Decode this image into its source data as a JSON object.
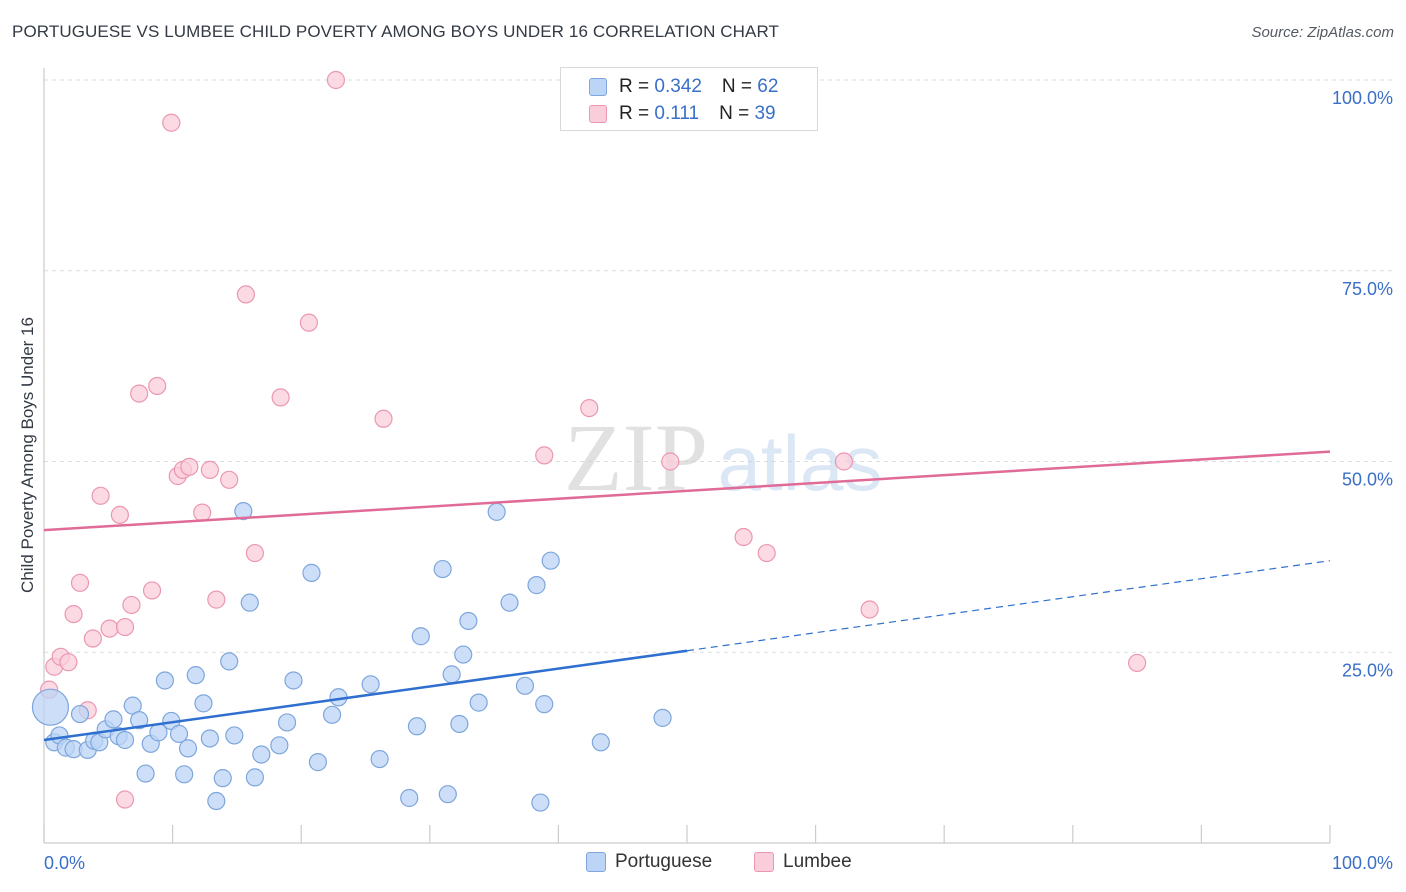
{
  "title": "PORTUGUESE VS LUMBEE CHILD POVERTY AMONG BOYS UNDER 16 CORRELATION CHART",
  "source": "Source: ZipAtlas.com",
  "watermark": {
    "zip": "ZIP",
    "atlas": "atlas"
  },
  "legend": [
    {
      "r_label": "R = ",
      "r_value": "0.342",
      "n_label": "N = ",
      "n_value": "62",
      "color": "#a9c8f0"
    },
    {
      "r_label": "R = ",
      "r_value": " 0.111",
      "n_label": "N = ",
      "n_value": "39",
      "color": "#f5b6c8"
    }
  ],
  "colors": {
    "portuguese_fill": "#bcd4f5",
    "portuguese_stroke": "#7ea6dc",
    "portuguese_line": "#2f6fcf",
    "lumbee_fill": "#f9cdd9",
    "lumbee_stroke": "#ec97b1",
    "lumbee_line": "#e06b97",
    "tick_label": "#3a6fc8",
    "grid": "#dddddd"
  },
  "chart_data": {
    "type": "scatter",
    "title": "PORTUGUESE VS LUMBEE CHILD POVERTY AMONG BOYS UNDER 16 CORRELATION CHART",
    "xlabel": "",
    "ylabel": "Child Poverty Among Boys Under 16",
    "xlim": [
      0,
      100
    ],
    "ylim": [
      0,
      100
    ],
    "x_tick_labels": [
      "0.0%",
      "100.0%"
    ],
    "y_ticks": [
      25,
      50,
      75,
      100
    ],
    "y_tick_labels": [
      "25.0%",
      "50.0%",
      "75.0%",
      "100.0%"
    ],
    "grid": true,
    "legend_position": "top-center",
    "series": [
      {
        "name": "Portuguese",
        "r": 0.342,
        "n": 62,
        "trend": {
          "x0": 0,
          "y0": 13.5,
          "x1": 50,
          "y1": 25.2,
          "dashed_to_x": 100,
          "dashed_to_y": 37.0
        },
        "points": [
          {
            "x": 0.5,
            "y": 17.8,
            "big": true
          },
          {
            "x": 0.8,
            "y": 13.2
          },
          {
            "x": 1.2,
            "y": 14.1
          },
          {
            "x": 1.7,
            "y": 12.5
          },
          {
            "x": 2.3,
            "y": 12.3
          },
          {
            "x": 2.8,
            "y": 16.9
          },
          {
            "x": 3.4,
            "y": 12.2
          },
          {
            "x": 3.9,
            "y": 13.4
          },
          {
            "x": 4.3,
            "y": 13.2
          },
          {
            "x": 4.8,
            "y": 14.9
          },
          {
            "x": 5.4,
            "y": 16.2
          },
          {
            "x": 5.8,
            "y": 14.0
          },
          {
            "x": 6.3,
            "y": 13.5
          },
          {
            "x": 6.9,
            "y": 18.0
          },
          {
            "x": 7.4,
            "y": 16.1
          },
          {
            "x": 7.9,
            "y": 9.1
          },
          {
            "x": 8.3,
            "y": 13.0
          },
          {
            "x": 8.9,
            "y": 14.5
          },
          {
            "x": 9.4,
            "y": 21.3
          },
          {
            "x": 9.9,
            "y": 16.0
          },
          {
            "x": 10.5,
            "y": 14.3
          },
          {
            "x": 10.9,
            "y": 9.0
          },
          {
            "x": 11.2,
            "y": 12.4
          },
          {
            "x": 11.8,
            "y": 22.0
          },
          {
            "x": 12.4,
            "y": 18.3
          },
          {
            "x": 12.9,
            "y": 13.7
          },
          {
            "x": 13.4,
            "y": 5.5
          },
          {
            "x": 13.9,
            "y": 8.5
          },
          {
            "x": 14.4,
            "y": 23.8
          },
          {
            "x": 14.8,
            "y": 14.1
          },
          {
            "x": 15.5,
            "y": 43.5
          },
          {
            "x": 16.0,
            "y": 31.5
          },
          {
            "x": 16.4,
            "y": 8.6
          },
          {
            "x": 16.9,
            "y": 11.6
          },
          {
            "x": 18.3,
            "y": 12.8
          },
          {
            "x": 18.9,
            "y": 15.8
          },
          {
            "x": 19.4,
            "y": 21.3
          },
          {
            "x": 20.8,
            "y": 35.4
          },
          {
            "x": 21.3,
            "y": 10.6
          },
          {
            "x": 22.4,
            "y": 16.8
          },
          {
            "x": 22.9,
            "y": 19.1
          },
          {
            "x": 25.4,
            "y": 20.8
          },
          {
            "x": 26.1,
            "y": 11.0
          },
          {
            "x": 28.4,
            "y": 5.9
          },
          {
            "x": 29.0,
            "y": 15.3
          },
          {
            "x": 29.3,
            "y": 27.1
          },
          {
            "x": 31.0,
            "y": 35.9
          },
          {
            "x": 31.4,
            "y": 6.4
          },
          {
            "x": 31.7,
            "y": 22.1
          },
          {
            "x": 32.3,
            "y": 15.6
          },
          {
            "x": 32.6,
            "y": 24.7
          },
          {
            "x": 33.0,
            "y": 29.1
          },
          {
            "x": 33.8,
            "y": 18.4
          },
          {
            "x": 35.2,
            "y": 43.4
          },
          {
            "x": 36.2,
            "y": 31.5
          },
          {
            "x": 37.4,
            "y": 20.6
          },
          {
            "x": 38.3,
            "y": 33.8
          },
          {
            "x": 38.6,
            "y": 5.3
          },
          {
            "x": 38.9,
            "y": 18.2
          },
          {
            "x": 39.4,
            "y": 37.0
          },
          {
            "x": 43.3,
            "y": 13.2
          },
          {
            "x": 48.1,
            "y": 16.4
          }
        ]
      },
      {
        "name": "Lumbee",
        "r": 0.111,
        "n": 39,
        "trend": {
          "x0": 0,
          "y0": 41.0,
          "x1": 100,
          "y1": 51.3
        },
        "points": [
          {
            "x": 0.4,
            "y": 20.1
          },
          {
            "x": 0.8,
            "y": 23.1
          },
          {
            "x": 1.3,
            "y": 24.4
          },
          {
            "x": 1.9,
            "y": 23.7
          },
          {
            "x": 2.3,
            "y": 30.0
          },
          {
            "x": 2.8,
            "y": 34.1
          },
          {
            "x": 3.4,
            "y": 17.4
          },
          {
            "x": 3.8,
            "y": 26.8
          },
          {
            "x": 4.4,
            "y": 45.5
          },
          {
            "x": 5.1,
            "y": 28.1
          },
          {
            "x": 5.9,
            "y": 43.0
          },
          {
            "x": 6.3,
            "y": 28.3
          },
          {
            "x": 6.3,
            "y": 5.7
          },
          {
            "x": 6.8,
            "y": 31.2
          },
          {
            "x": 7.4,
            "y": 58.9
          },
          {
            "x": 8.4,
            "y": 33.1
          },
          {
            "x": 8.8,
            "y": 59.9
          },
          {
            "x": 9.9,
            "y": 94.4
          },
          {
            "x": 10.4,
            "y": 48.1
          },
          {
            "x": 10.8,
            "y": 48.9
          },
          {
            "x": 11.3,
            "y": 49.3
          },
          {
            "x": 12.3,
            "y": 43.3
          },
          {
            "x": 12.9,
            "y": 48.9
          },
          {
            "x": 13.4,
            "y": 31.9
          },
          {
            "x": 14.4,
            "y": 47.6
          },
          {
            "x": 15.7,
            "y": 71.9
          },
          {
            "x": 16.4,
            "y": 38.0
          },
          {
            "x": 18.4,
            "y": 58.4
          },
          {
            "x": 20.6,
            "y": 68.2
          },
          {
            "x": 22.7,
            "y": 100.0
          },
          {
            "x": 26.4,
            "y": 55.6
          },
          {
            "x": 38.9,
            "y": 50.8
          },
          {
            "x": 42.4,
            "y": 57.0
          },
          {
            "x": 48.7,
            "y": 50.0
          },
          {
            "x": 54.4,
            "y": 40.1
          },
          {
            "x": 56.2,
            "y": 38.0
          },
          {
            "x": 62.2,
            "y": 50.0
          },
          {
            "x": 64.2,
            "y": 30.6
          },
          {
            "x": 85.0,
            "y": 23.6
          }
        ]
      }
    ]
  }
}
